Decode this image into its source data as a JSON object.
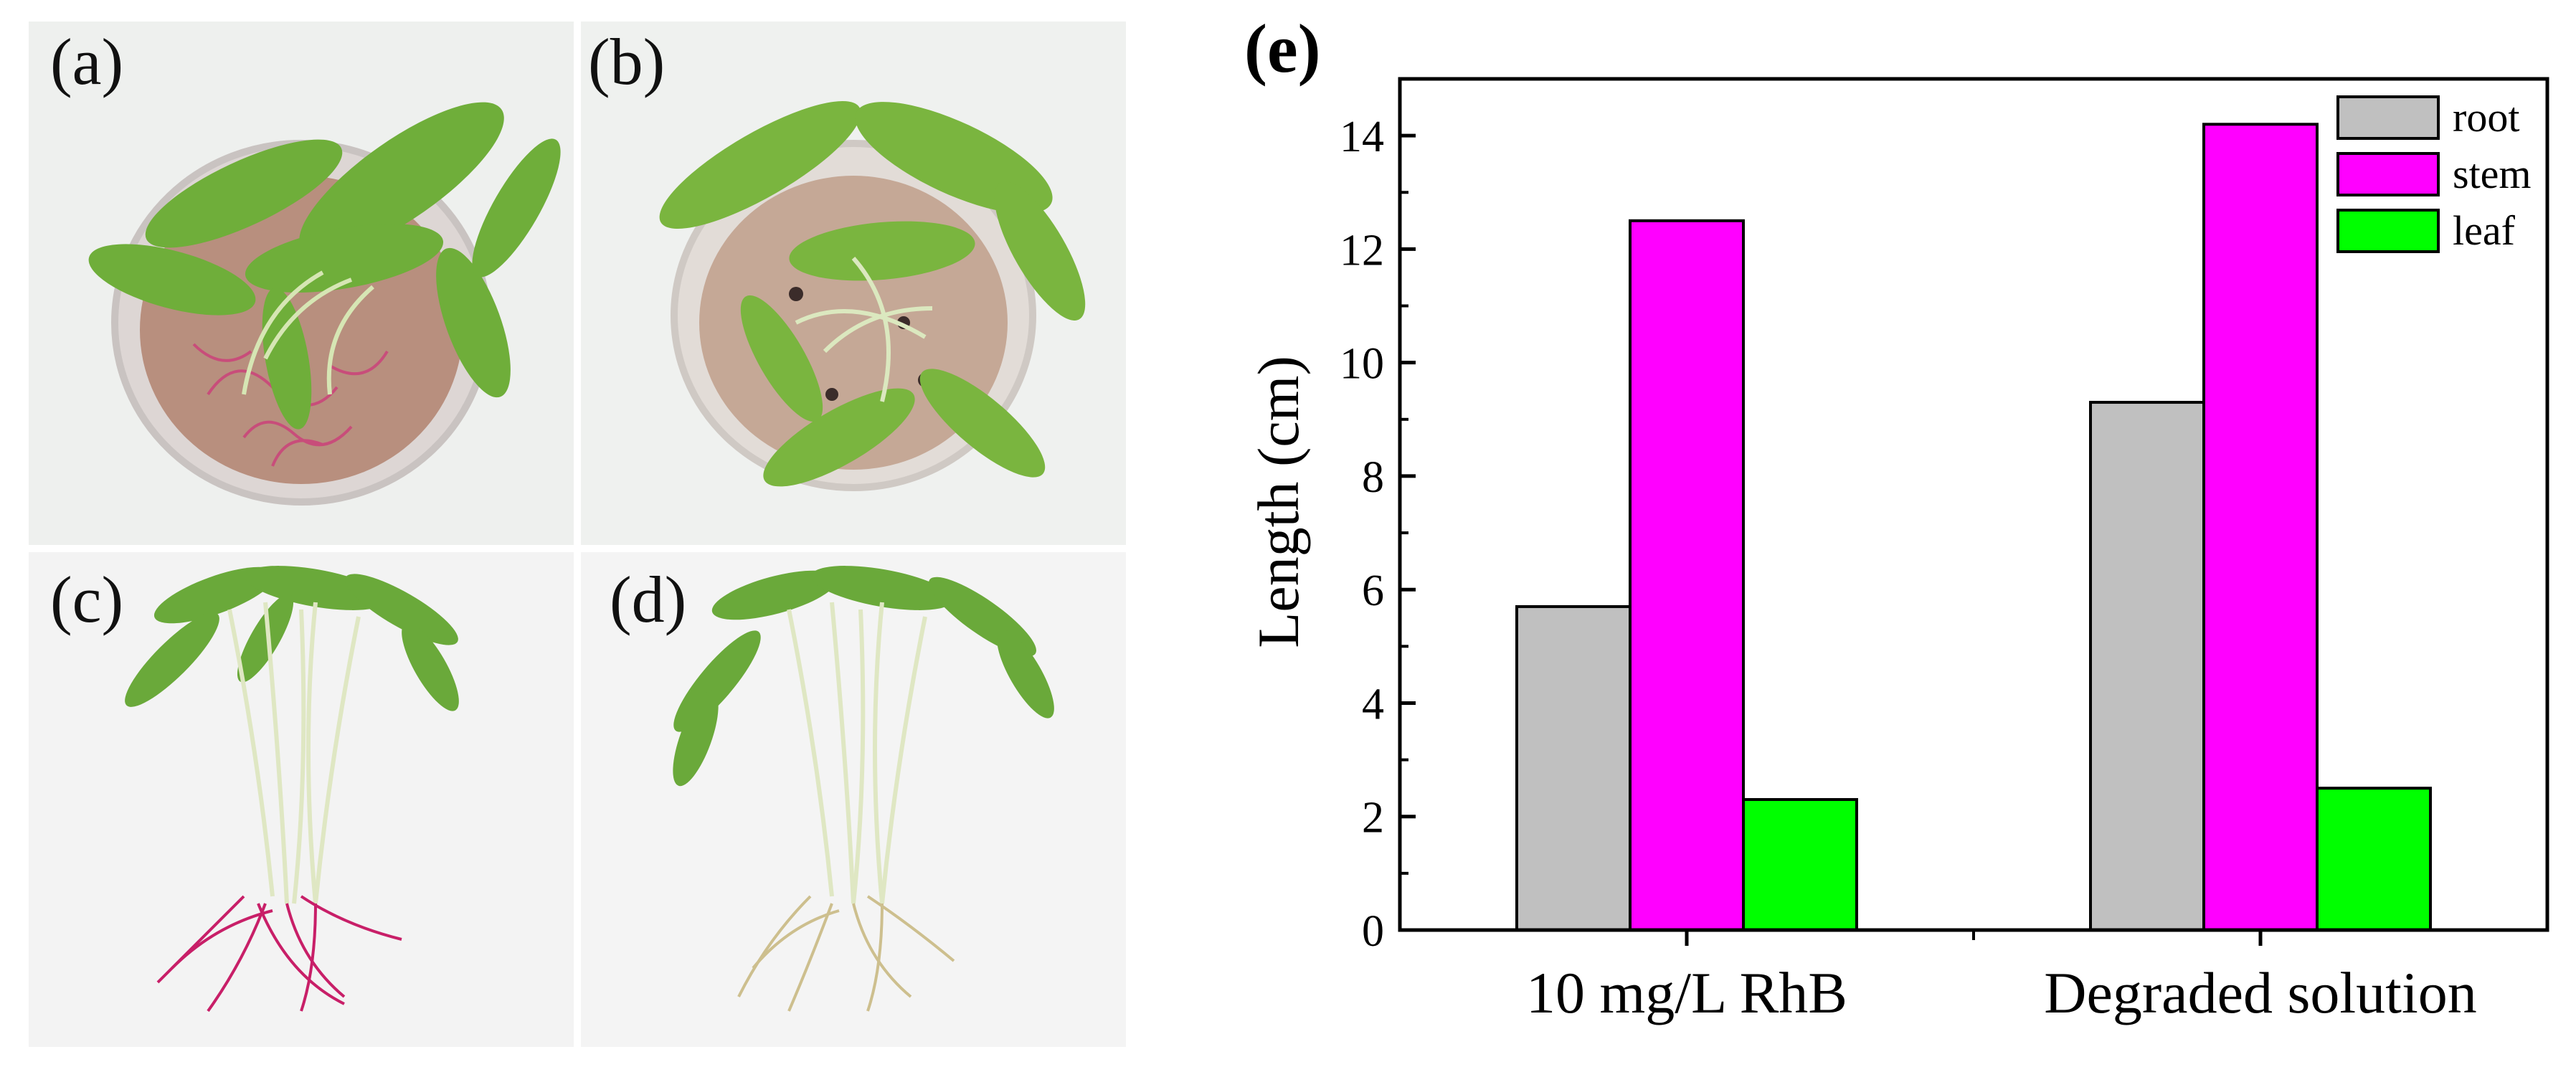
{
  "panels": {
    "a": {
      "label": "(a)"
    },
    "b": {
      "label": "(b)"
    },
    "c": {
      "label": "(c)"
    },
    "d": {
      "label": "(d)"
    }
  },
  "chart_data": {
    "type": "bar",
    "panel_label": "(e)",
    "categories": [
      "10 mg/L RhB",
      "Degraded solution"
    ],
    "series": [
      {
        "name": "root",
        "color": "#c0c0c0",
        "values": [
          5.7,
          9.3
        ]
      },
      {
        "name": "stem",
        "color": "#ff00ff",
        "values": [
          12.5,
          14.2
        ]
      },
      {
        "name": "leaf",
        "color": "#00ff00",
        "values": [
          2.3,
          2.5
        ]
      }
    ],
    "title": "",
    "xlabel": "",
    "ylabel": "Length (cm)",
    "ylim": [
      0,
      15
    ],
    "yticks": [
      0,
      2,
      4,
      6,
      8,
      10,
      12,
      14
    ],
    "legend_position": "top-right",
    "grid": false
  }
}
